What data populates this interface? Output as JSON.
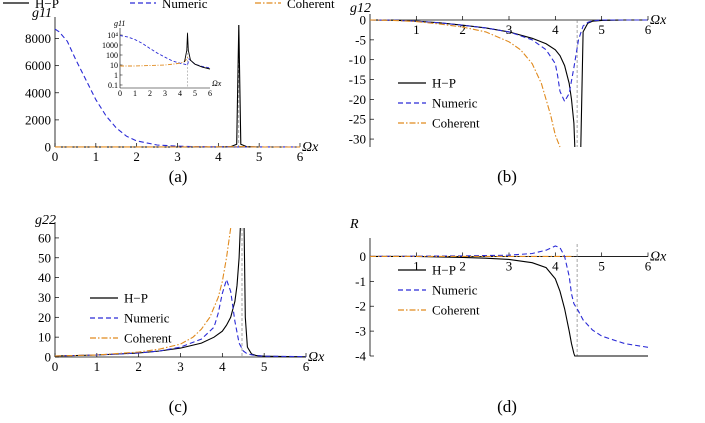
{
  "colors": {
    "hp": "#000000",
    "numeric": "#2b2bd6",
    "coherent": "#e08a1e",
    "marker": "#808080"
  },
  "chart_data": [
    {
      "type": "line",
      "panel": "a",
      "caption": "(a)",
      "xlabel": "Ωx",
      "ylabel": "g11",
      "xlim": [
        0,
        6
      ],
      "ylim": [
        0,
        9000
      ],
      "xticks": [
        0,
        1,
        2,
        3,
        4,
        5,
        6
      ],
      "yticks": [
        0,
        2000,
        4000,
        6000,
        8000
      ],
      "legend": {
        "placement": "top",
        "entries": [
          "H−P",
          "Numeric",
          "Coherent"
        ]
      },
      "grid": false,
      "resonance_x": 4.5,
      "series": [
        {
          "name": "H−P",
          "style": "solid",
          "color": "#000000",
          "x": [
            0,
            0.5,
            1,
            2,
            3,
            4,
            4.3,
            4.45,
            4.5,
            4.55,
            4.7,
            5,
            6
          ],
          "y": [
            0,
            0,
            0,
            0,
            0,
            0,
            20,
            200,
            9000,
            200,
            20,
            0,
            0
          ]
        },
        {
          "name": "Numeric",
          "style": "dashed",
          "color": "#2b2bd6",
          "x": [
            0,
            0.1,
            0.3,
            0.5,
            0.75,
            1,
            1.25,
            1.5,
            1.75,
            2,
            2.5,
            3,
            3.5,
            4,
            4.5,
            5,
            6
          ],
          "y": [
            8700,
            8500,
            7800,
            6500,
            5000,
            3500,
            2300,
            1400,
            800,
            450,
            150,
            60,
            25,
            15,
            10,
            5,
            3
          ]
        },
        {
          "name": "Coherent",
          "style": "dashdot",
          "color": "#e08a1e",
          "x": [
            0,
            1,
            2,
            3,
            4,
            4.4,
            4.5,
            5,
            6
          ],
          "y": [
            8,
            8,
            9,
            10,
            14,
            25,
            30,
            3,
            2
          ]
        }
      ],
      "inset": {
        "type": "line",
        "xlabel": "Ωx",
        "ylabel": "g11",
        "scale": "log",
        "xlim": [
          0,
          6
        ],
        "xticks": [
          0,
          1,
          2,
          3,
          4,
          5,
          6
        ],
        "yticks": [
          {
            "value": 10000,
            "label": "10⁴"
          },
          {
            "value": 1000,
            "label": "1000"
          },
          {
            "value": 100,
            "label": "100"
          },
          {
            "value": 10,
            "label": "10"
          },
          {
            "value": 1,
            "label": "1"
          },
          {
            "value": 0.1,
            "label": "0.1"
          }
        ],
        "ylim": [
          0.05,
          20000
        ],
        "series": [
          {
            "name": "Numeric",
            "x": [
              0,
              0.5,
              1,
              1.5,
              2,
              2.5,
              3,
              3.5,
              4,
              4.3,
              4.5,
              4.6,
              5,
              5.5,
              6
            ],
            "y": [
              8700,
              6500,
              3500,
              1400,
              450,
              150,
              60,
              25,
              15,
              12,
              10,
              40,
              12,
              7,
              5
            ]
          },
          {
            "name": "Coherent",
            "x": [
              0,
              1,
              2,
              3,
              3.5,
              4,
              4.3,
              4.45,
              4.5
            ],
            "y": [
              8,
              8,
              9,
              10,
              12,
              15,
              22,
              40,
              60
            ]
          },
          {
            "name": "H−P",
            "x": [
              4.3,
              4.45,
              4.5,
              4.55,
              4.7,
              5,
              5.5,
              6
            ],
            "y": [
              20,
              300,
              15000,
              300,
              30,
              12,
              6,
              4
            ]
          }
        ]
      }
    },
    {
      "type": "line",
      "panel": "b",
      "caption": "(b)",
      "xlabel": "Ωx",
      "ylabel": "g12",
      "xlim": [
        0,
        6
      ],
      "ylim": [
        -32,
        0
      ],
      "xticks": [
        1,
        2,
        3,
        4,
        5,
        6
      ],
      "yticks": [
        0,
        -5,
        -10,
        -15,
        -20,
        -25,
        -30
      ],
      "legend": {
        "placement": "center",
        "entries": [
          "H−P",
          "Numeric",
          "Coherent"
        ]
      },
      "grid": false,
      "resonance_x": 4.47,
      "series": [
        {
          "name": "H−P",
          "style": "solid",
          "color": "#000000",
          "x": [
            0,
            0.5,
            1,
            1.5,
            2,
            2.5,
            3,
            3.5,
            3.8,
            4,
            4.1,
            4.2,
            4.3,
            4.35,
            4.4,
            4.42
          ],
          "y": [
            0,
            -0.05,
            -0.3,
            -0.7,
            -1.3,
            -2.0,
            -3.0,
            -4.6,
            -6.0,
            -7.5,
            -9.0,
            -11.5,
            -16,
            -20,
            -26,
            -32
          ]
        },
        {
          "name": "H−P",
          "style": "solid",
          "color": "#000000",
          "x": [
            4.55,
            4.6,
            4.7,
            4.8,
            5,
            5.5,
            6
          ],
          "y": [
            -32,
            -3,
            -0.8,
            -0.3,
            -0.1,
            0,
            0
          ]
        },
        {
          "name": "Numeric",
          "style": "dashed",
          "color": "#2b2bd6",
          "x": [
            0,
            0.5,
            1,
            1.5,
            2,
            2.5,
            3,
            3.5,
            3.8,
            4,
            4.05,
            4.1,
            4.2,
            4.3,
            4.4,
            4.5,
            4.6,
            4.7,
            4.8,
            5,
            6
          ],
          "y": [
            0,
            -0.05,
            -0.3,
            -0.7,
            -1.3,
            -2.0,
            -3.0,
            -5.0,
            -7.5,
            -11,
            -14,
            -18,
            -20.5,
            -18.5,
            -12,
            -5,
            -1.5,
            -0.6,
            -0.2,
            0,
            0
          ]
        },
        {
          "name": "Coherent",
          "style": "dashdot",
          "color": "#e08a1e",
          "x": [
            0,
            0.5,
            1,
            1.5,
            2,
            2.5,
            3,
            3.25,
            3.5,
            3.7,
            3.9,
            4.0,
            4.1
          ],
          "y": [
            0,
            -0.1,
            -0.4,
            -1.0,
            -1.8,
            -3.0,
            -5.5,
            -7.5,
            -11,
            -16,
            -24,
            -29,
            -32
          ]
        }
      ]
    },
    {
      "type": "line",
      "panel": "c",
      "caption": "(c)",
      "xlabel": "Ωx",
      "ylabel": "g22",
      "xlim": [
        0,
        6
      ],
      "ylim": [
        0,
        65
      ],
      "xticks": [
        0,
        1,
        2,
        3,
        4,
        5,
        6
      ],
      "yticks": [
        0,
        10,
        20,
        30,
        40,
        50,
        60
      ],
      "legend": {
        "placement": "center-left",
        "entries": [
          "H−P",
          "Numeric",
          "Coherent"
        ]
      },
      "grid": false,
      "resonance_x": 4.47,
      "series": [
        {
          "name": "H−P",
          "style": "solid",
          "color": "#000000",
          "x": [
            0,
            1,
            2,
            2.5,
            3,
            3.5,
            3.8,
            4,
            4.1,
            4.2,
            4.3,
            4.35,
            4.4,
            4.43
          ],
          "y": [
            0.5,
            1,
            2,
            3,
            4.5,
            7,
            10,
            13,
            16,
            20,
            28,
            36,
            50,
            65
          ]
        },
        {
          "name": "H−P",
          "style": "solid",
          "color": "#000000",
          "x": [
            4.52,
            4.55,
            4.6,
            4.7,
            4.8,
            5,
            5.5,
            6
          ],
          "y": [
            65,
            20,
            5,
            1.5,
            0.8,
            0.4,
            0.2,
            0.1
          ]
        },
        {
          "name": "Numeric",
          "style": "dashed",
          "color": "#2b2bd6",
          "x": [
            0,
            1,
            2,
            2.5,
            3,
            3.5,
            3.8,
            3.9,
            4.0,
            4.1,
            4.2,
            4.3,
            4.4,
            4.5,
            4.6,
            4.8,
            5,
            6
          ],
          "y": [
            0.5,
            1,
            2,
            3,
            5,
            9,
            15,
            22,
            32,
            39,
            33,
            18,
            7,
            3,
            1.5,
            0.7,
            0.4,
            0.2
          ]
        },
        {
          "name": "Coherent",
          "style": "dashdot",
          "color": "#e08a1e",
          "x": [
            0,
            1,
            2,
            2.5,
            3,
            3.3,
            3.5,
            3.7,
            3.9,
            4.0,
            4.1,
            4.2
          ],
          "y": [
            0.5,
            1,
            2.5,
            4,
            6.5,
            10,
            14,
            20,
            30,
            38,
            50,
            65
          ]
        }
      ]
    },
    {
      "type": "line",
      "panel": "d",
      "caption": "(d)",
      "xlabel": "Ωx",
      "ylabel": "R",
      "xlim": [
        0,
        6
      ],
      "ylim": [
        -4,
        0.5
      ],
      "xticks": [
        1,
        2,
        3,
        4,
        5,
        6
      ],
      "yticks": [
        0,
        -1,
        -2,
        -3,
        -4
      ],
      "legend": {
        "placement": "center-left",
        "entries": [
          "H−P",
          "Numeric",
          "Coherent"
        ]
      },
      "grid": false,
      "resonance_x": 4.47,
      "series": [
        {
          "name": "H−P",
          "style": "solid",
          "color": "#000000",
          "x": [
            0,
            0.5,
            1,
            1.5,
            2,
            2.5,
            3,
            3.5,
            3.8,
            4.0,
            4.1,
            4.2,
            4.3,
            4.35,
            4.4,
            4.42,
            4.5,
            5,
            6
          ],
          "y": [
            0,
            0,
            0,
            -0.02,
            -0.04,
            -0.07,
            -0.12,
            -0.25,
            -0.45,
            -0.9,
            -1.4,
            -2.1,
            -3.0,
            -3.5,
            -3.9,
            -4.0,
            -4.0,
            -4.0,
            -4.0
          ]
        },
        {
          "name": "Numeric",
          "style": "dashed",
          "color": "#2b2bd6",
          "x": [
            0,
            1,
            2,
            3,
            3.5,
            3.8,
            4.0,
            4.1,
            4.2,
            4.3,
            4.35,
            4.4,
            4.5,
            4.6,
            4.8,
            5,
            5.5,
            6
          ],
          "y": [
            0,
            0.01,
            0.02,
            0.05,
            0.12,
            0.25,
            0.42,
            0.35,
            0.0,
            -0.8,
            -1.5,
            -1.9,
            -2.2,
            -2.55,
            -2.95,
            -3.2,
            -3.5,
            -3.65
          ]
        },
        {
          "name": "Coherent",
          "style": "dashdot",
          "color": "#e08a1e",
          "x": [
            0,
            1,
            2,
            3,
            4,
            4.4
          ],
          "y": [
            0,
            0,
            0,
            0,
            0,
            0
          ]
        }
      ]
    }
  ]
}
